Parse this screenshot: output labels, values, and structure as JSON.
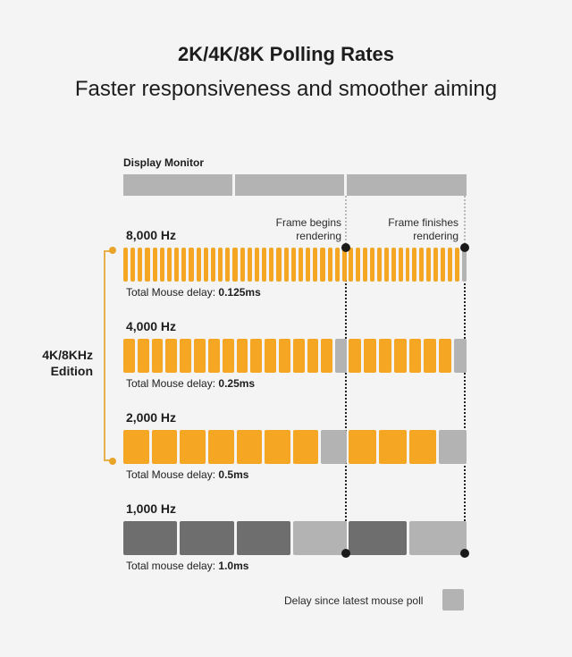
{
  "title": "2K/4K/8K Polling Rates",
  "subtitle": "Faster responsiveness and smoother aiming",
  "monitor": {
    "label": "Display Monitor",
    "frames": 3
  },
  "annotations": {
    "frame_begins": [
      "Frame begins",
      "rendering"
    ],
    "frame_finishes": [
      "Frame finishes",
      "rendering"
    ]
  },
  "edition_label": [
    "4K/8KHz",
    "Edition"
  ],
  "colors": {
    "poll": "#f5a623",
    "delay": "#b3b3b3",
    "poll_1000": "#6e6e6e",
    "delay_1000": "#b3b3b3",
    "bracket": "#e8b04a"
  },
  "rows": [
    {
      "rate": "8,000 Hz",
      "delay_prefix": "Total Mouse delay: ",
      "delay_value": "0.125ms",
      "segments": [
        {
          "polls": 31,
          "delay": false
        },
        {
          "polls": 16,
          "delay": true
        }
      ]
    },
    {
      "rate": "4,000 Hz",
      "delay_prefix": "Total Mouse delay: ",
      "delay_value": "0.25ms",
      "segments": [
        {
          "polls": 15,
          "delay": true
        },
        {
          "polls": 7,
          "delay": true
        }
      ]
    },
    {
      "rate": "2,000 Hz",
      "delay_prefix": "Total Mouse delay: ",
      "delay_value": "0.5ms",
      "segments": [
        {
          "polls": 7,
          "delay": true
        },
        {
          "polls": 3,
          "delay": true
        }
      ]
    },
    {
      "rate": "1,000 Hz",
      "delay_prefix": "Total mouse delay: ",
      "delay_value": "1.0ms",
      "segments": [
        {
          "polls": 3,
          "delay": true
        },
        {
          "polls": 1,
          "delay": true
        }
      ]
    }
  ],
  "legend": {
    "label": "Delay since latest mouse poll"
  }
}
